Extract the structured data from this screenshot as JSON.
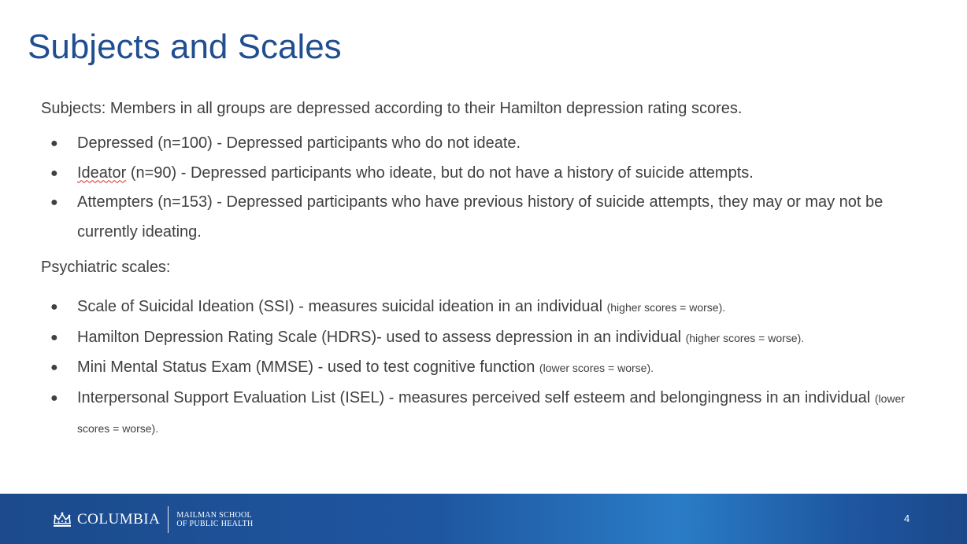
{
  "slide": {
    "title": "Subjects and Scales",
    "subjects_intro": "Subjects: Members in all groups are depressed according to their Hamilton depression rating scores.",
    "subjects": [
      {
        "lead": "Depressed",
        "text": " (n=100) - Depressed participants who do not ideate."
      },
      {
        "lead": "Ideator",
        "text": " (n=90) - Depressed participants who ideate, but do not have a history of suicide attempts."
      },
      {
        "lead": "Attempters",
        "text": " (n=153)  - Depressed participants who have previous history of suicide attempts, they may or may not be currently ideating."
      }
    ],
    "scales_intro": "Psychiatric scales:",
    "scales": [
      {
        "text": "Scale of Suicidal Ideation (SSI) - measures suicidal ideation in an individual ",
        "note": "(higher  scores = worse)."
      },
      {
        "text": "Hamilton Depression Rating Scale (HDRS)-  used to assess depression in an individual ",
        "note": "(higher  scores = worse)."
      },
      {
        "text": "Mini Mental Status Exam (MMSE) -  used to test cognitive function ",
        "note": "(lower scores = worse)."
      },
      {
        "text": "Interpersonal Support Evaluation List (ISEL) - measures perceived self esteem and belongingness in an individual  ",
        "note": "(lower scores = worse)."
      }
    ],
    "bullet_glyph": "●"
  },
  "footer": {
    "logo_icon": "crown-icon",
    "logo_word": "COLUMBIA",
    "logo_sub_line1": "MAILMAN SCHOOL",
    "logo_sub_line2": "OF PUBLIC HEALTH",
    "page_number": "4"
  },
  "colors": {
    "title": "#1f4e91",
    "body_text": "#404040",
    "footer_bar": "#1e56a0",
    "spell_check": "#d92b2b"
  }
}
